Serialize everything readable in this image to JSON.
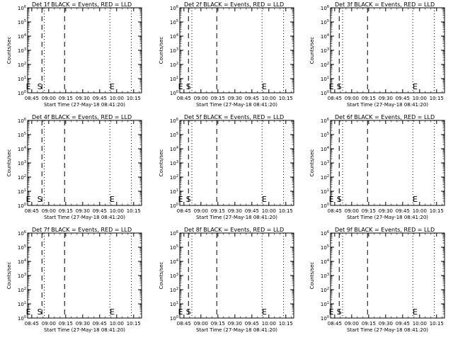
{
  "chart_data": [
    {
      "type": "line",
      "title": "Det 1f BLACK = Events, RED = LLD",
      "xlabel": "Start Time (27-May-18 08:41:20)",
      "ylabel": "Counts/sec",
      "x_ticks": [
        "08:45",
        "09:00",
        "09:15",
        "09:30",
        "09:45",
        "10:00",
        "10:15"
      ],
      "y_ticks": [
        "10^0",
        "10^1",
        "10^2",
        "10^3",
        "10^4",
        "10^5",
        "10^6"
      ],
      "y_scale": "log",
      "ylim": [
        1,
        1000000
      ],
      "markers": [
        {
          "label": "E",
          "time": "08:42"
        },
        {
          "label": "S",
          "time": "08:52"
        },
        {
          "label": "E",
          "time": "09:56"
        }
      ],
      "dashed_lines": [
        "08:54",
        "09:14"
      ],
      "dotted_lines": [
        "08:56",
        "09:54",
        "10:13"
      ],
      "series": []
    },
    {
      "type": "line",
      "title": "Det 2f BLACK = Events, RED = LLD",
      "xlabel": "Start Time (27-May-18 08:41:20)",
      "ylabel": "Counts/sec",
      "x_ticks": [
        "08:45",
        "09:00",
        "09:15",
        "09:30",
        "09:45",
        "10:00",
        "10:15"
      ],
      "y_ticks": [
        "10^0",
        "10^1",
        "10^2",
        "10^3",
        "10^4",
        "10^5",
        "10^6"
      ],
      "y_scale": "log",
      "ylim": [
        1,
        1000000
      ],
      "markers": [
        {
          "label": "E",
          "time": "08:42"
        },
        {
          "label": "S",
          "time": "08:49"
        },
        {
          "label": "E",
          "time": "09:56"
        }
      ],
      "dashed_lines": [
        "08:49",
        "09:14"
      ],
      "dotted_lines": [
        "08:52",
        "09:54",
        "10:13"
      ],
      "series": []
    },
    {
      "type": "line",
      "title": "Det 3f BLACK = Events, RED = LLD",
      "xlabel": "Start Time (27-May-18 08:41:20)",
      "ylabel": "Counts/sec",
      "x_ticks": [
        "08:45",
        "09:00",
        "09:15",
        "09:30",
        "09:45",
        "10:00",
        "10:15"
      ],
      "y_ticks": [
        "10^0",
        "10^1",
        "10^2",
        "10^3",
        "10^4",
        "10^5",
        "10^6"
      ],
      "y_scale": "log",
      "ylim": [
        1,
        1000000
      ],
      "markers": [
        {
          "label": "E",
          "time": "08:42"
        },
        {
          "label": "S",
          "time": "08:49"
        },
        {
          "label": "E",
          "time": "09:56"
        }
      ],
      "dashed_lines": [
        "08:49",
        "09:14"
      ],
      "dotted_lines": [
        "08:52",
        "09:54",
        "10:13"
      ],
      "series": []
    },
    {
      "type": "line",
      "title": "Det 4f BLACK = Events, RED = LLD",
      "xlabel": "Start Time (27-May-18 08:41:20)",
      "ylabel": "Counts/sec",
      "x_ticks": [
        "08:45",
        "09:00",
        "09:15",
        "09:30",
        "09:45",
        "10:00",
        "10:15"
      ],
      "y_ticks": [
        "10^0",
        "10^1",
        "10^2",
        "10^3",
        "10^4",
        "10^5",
        "10^6"
      ],
      "y_scale": "log",
      "ylim": [
        1,
        1000000
      ],
      "markers": [
        {
          "label": "E",
          "time": "08:42"
        },
        {
          "label": "S",
          "time": "08:52"
        },
        {
          "label": "E",
          "time": "09:56"
        }
      ],
      "dashed_lines": [
        "08:54",
        "09:14"
      ],
      "dotted_lines": [
        "08:56",
        "09:54",
        "10:13"
      ],
      "series": []
    },
    {
      "type": "line",
      "title": "Det 5f BLACK = Events, RED = LLD",
      "xlabel": "Start Time (27-May-18 08:41:20)",
      "ylabel": "Counts/sec",
      "x_ticks": [
        "08:45",
        "09:00",
        "09:15",
        "09:30",
        "09:45",
        "10:00",
        "10:15"
      ],
      "y_ticks": [
        "10^0",
        "10^1",
        "10^2",
        "10^3",
        "10^4",
        "10^5",
        "10^6"
      ],
      "y_scale": "log",
      "ylim": [
        1,
        1000000
      ],
      "markers": [
        {
          "label": "E",
          "time": "08:42"
        },
        {
          "label": "S",
          "time": "08:49"
        },
        {
          "label": "E",
          "time": "09:56"
        }
      ],
      "dashed_lines": [
        "08:49",
        "09:14"
      ],
      "dotted_lines": [
        "08:52",
        "09:54",
        "10:13"
      ],
      "series": []
    },
    {
      "type": "line",
      "title": "Det 6f BLACK = Events, RED = LLD",
      "xlabel": "Start Time (27-May-18 08:41:20)",
      "ylabel": "Counts/sec",
      "x_ticks": [
        "08:45",
        "09:00",
        "09:15",
        "09:30",
        "09:45",
        "10:00",
        "10:15"
      ],
      "y_ticks": [
        "10^0",
        "10^1",
        "10^2",
        "10^3",
        "10^4",
        "10^5",
        "10^6"
      ],
      "y_scale": "log",
      "ylim": [
        1,
        1000000
      ],
      "markers": [
        {
          "label": "E",
          "time": "08:42"
        },
        {
          "label": "S",
          "time": "08:49"
        },
        {
          "label": "E",
          "time": "09:56"
        }
      ],
      "dashed_lines": [
        "08:49",
        "09:14"
      ],
      "dotted_lines": [
        "08:52",
        "09:54",
        "10:13"
      ],
      "series": []
    },
    {
      "type": "line",
      "title": "Det 7f BLACK = Events, RED = LLD",
      "xlabel": "Start Time (27-May-18 08:41:20)",
      "ylabel": "Counts/sec",
      "x_ticks": [
        "08:45",
        "09:00",
        "09:15",
        "09:30",
        "09:45",
        "10:00",
        "10:15"
      ],
      "y_ticks": [
        "10^0",
        "10^1",
        "10^2",
        "10^3",
        "10^4",
        "10^5",
        "10^6"
      ],
      "y_scale": "log",
      "ylim": [
        1,
        1000000
      ],
      "markers": [
        {
          "label": "E",
          "time": "08:42"
        },
        {
          "label": "S",
          "time": "08:52"
        },
        {
          "label": "E",
          "time": "09:56"
        }
      ],
      "dashed_lines": [
        "08:54",
        "09:14"
      ],
      "dotted_lines": [
        "08:56",
        "09:54",
        "10:13"
      ],
      "series": []
    },
    {
      "type": "line",
      "title": "Det 8f BLACK = Events, RED = LLD",
      "xlabel": "Start Time (27-May-18 08:41:20)",
      "ylabel": "Counts/sec",
      "x_ticks": [
        "08:45",
        "09:00",
        "09:15",
        "09:30",
        "09:45",
        "10:00",
        "10:15"
      ],
      "y_ticks": [
        "10^0",
        "10^1",
        "10^2",
        "10^3",
        "10^4",
        "10^5",
        "10^6"
      ],
      "y_scale": "log",
      "ylim": [
        1,
        1000000
      ],
      "markers": [
        {
          "label": "E",
          "time": "08:42"
        },
        {
          "label": "S",
          "time": "08:49"
        },
        {
          "label": "E",
          "time": "09:56"
        }
      ],
      "dashed_lines": [
        "08:49",
        "09:14"
      ],
      "dotted_lines": [
        "08:52",
        "09:54",
        "10:13"
      ],
      "series": []
    },
    {
      "type": "line",
      "title": "Det 9f BLACK = Events, RED = LLD",
      "xlabel": "Start Time (27-May-18 08:41:20)",
      "ylabel": "Counts/sec",
      "x_ticks": [
        "08:45",
        "09:00",
        "09:15",
        "09:30",
        "09:45",
        "10:00",
        "10:15"
      ],
      "y_ticks": [
        "10^0",
        "10^1",
        "10^2",
        "10^3",
        "10^4",
        "10^5",
        "10^6"
      ],
      "y_scale": "log",
      "ylim": [
        1,
        1000000
      ],
      "markers": [
        {
          "label": "E",
          "time": "08:42"
        },
        {
          "label": "S",
          "time": "08:49"
        },
        {
          "label": "E",
          "time": "09:56"
        }
      ],
      "dashed_lines": [
        "08:49",
        "09:14"
      ],
      "dotted_lines": [
        "08:52",
        "09:54",
        "10:13"
      ],
      "series": []
    }
  ]
}
